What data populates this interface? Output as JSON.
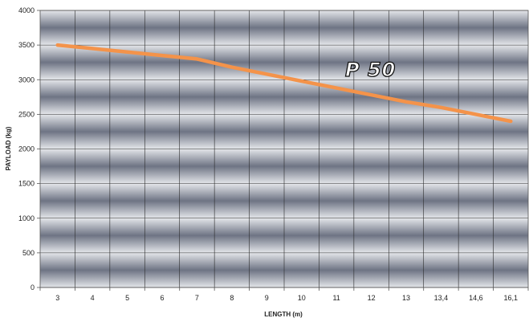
{
  "chart_data": {
    "type": "line",
    "title": "",
    "xlabel": "LENGTH (m)",
    "ylabel": "PAYLOAD (kg)",
    "categories": [
      "3",
      "4",
      "5",
      "6",
      "7",
      "8",
      "9",
      "10",
      "11",
      "12",
      "13",
      "13,4",
      "14,6",
      "16,1"
    ],
    "yticks": [
      "0",
      "500",
      "1000",
      "1500",
      "2000",
      "2500",
      "3000",
      "3500",
      "4000"
    ],
    "ylim": [
      0,
      4000
    ],
    "grid": true,
    "series": [
      {
        "name": "P 50",
        "color": "#f4934a",
        "values": [
          3500,
          3450,
          3400,
          3350,
          3300,
          3180,
          3080,
          2980,
          2880,
          2780,
          2680,
          2600,
          2500,
          2400
        ]
      }
    ]
  }
}
